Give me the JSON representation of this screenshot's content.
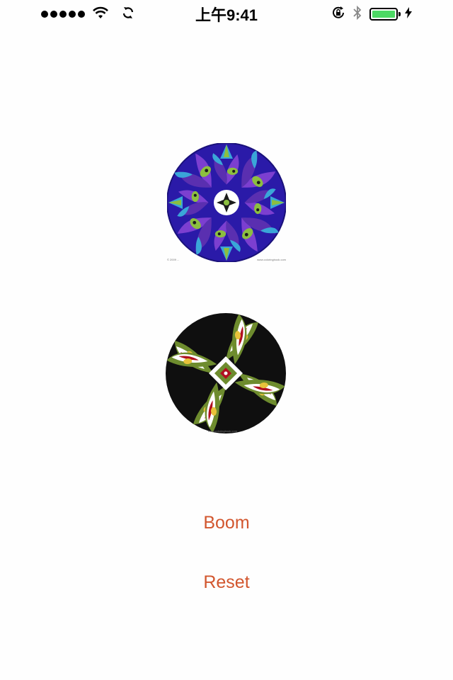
{
  "status_bar": {
    "time": "上午9:41",
    "signal_dots": 5,
    "battery_level": 1.0,
    "battery_color": "#4cd964",
    "icons": [
      "signal-dots-icon",
      "wifi-icon",
      "sync-icon",
      "orientation-lock-icon",
      "bluetooth-icon",
      "battery-icon",
      "charging-bolt-icon"
    ]
  },
  "images": {
    "top": {
      "caption_left": "© 2009 ...",
      "caption_right": "www.coloringbook.com"
    },
    "bottom": {
      "caption": "www.coloringbook.com"
    }
  },
  "buttons": {
    "boom_label": "Boom",
    "reset_label": "Reset",
    "color": "#d2562e"
  }
}
